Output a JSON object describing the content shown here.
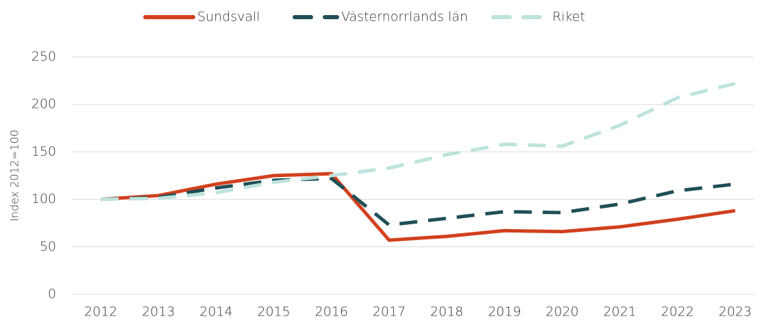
{
  "chart_data": {
    "type": "line",
    "categories": [
      "2012",
      "2013",
      "2014",
      "2015",
      "2016",
      "2017",
      "2018",
      "2019",
      "2020",
      "2021",
      "2022",
      "2023"
    ],
    "ylabel": "Index 2012=100",
    "ylim": [
      0,
      250
    ],
    "yticks": [
      0,
      50,
      100,
      150,
      200,
      250
    ],
    "grid": true,
    "legend": "top",
    "series": [
      {
        "name": "Sundsvall",
        "color": "#d2401e",
        "style": "solid",
        "values": [
          100,
          104,
          116,
          125,
          127,
          57,
          61,
          67,
          66,
          71,
          79,
          88
        ]
      },
      {
        "name": "Västernorrlands län",
        "color": "#1f4e56",
        "style": "dashed",
        "values": [
          100,
          102,
          112,
          120,
          122,
          73,
          80,
          87,
          86,
          95,
          109,
          116
        ]
      },
      {
        "name": "Riket",
        "color": "#bde3dd",
        "style": "dashed",
        "values": [
          100,
          101,
          107,
          118,
          125,
          133,
          147,
          158,
          156,
          178,
          207,
          222
        ]
      }
    ]
  }
}
